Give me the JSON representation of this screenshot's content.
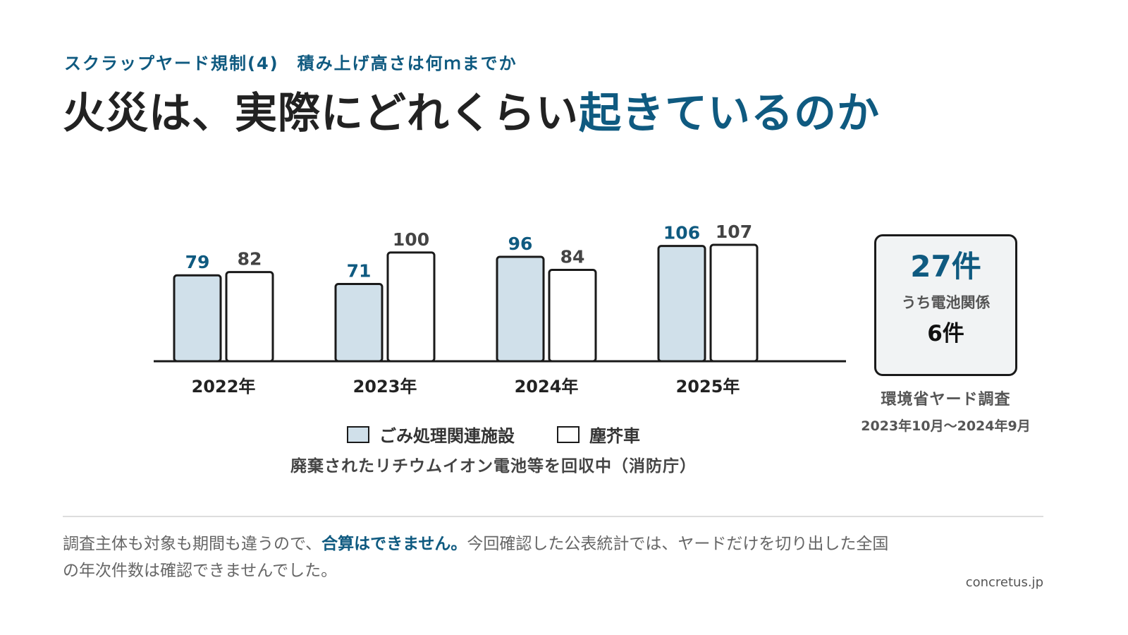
{
  "header": {
    "subtitle": "スクラップヤード規制(4)　積み上げ高さは何ｍまでか",
    "title_part1": "火災は、実際にどれくらい",
    "title_part2": "起きているのか"
  },
  "colors": {
    "accent": "#0f5a80",
    "series1_fill": "#d0e0ea",
    "series2_fill": "#ffffff",
    "stroke": "#1a1a1a"
  },
  "chart_data": {
    "type": "bar",
    "categories": [
      "2022年",
      "2023年",
      "2024年",
      "2025年"
    ],
    "series": [
      {
        "name": "ごみ処理関連施設",
        "values": [
          79,
          71,
          96,
          106
        ]
      },
      {
        "name": "塵芥車",
        "values": [
          82,
          100,
          84,
          107
        ]
      }
    ],
    "ylim": [
      0,
      120
    ],
    "grid": false,
    "legend": "bottom",
    "note": "廃棄されたリチウムイオン電池等を回収中（消防庁）"
  },
  "stat": {
    "main": "27件",
    "sub_label": "うち電池関係",
    "sub_count": "6件",
    "source": "環境省ヤード調査",
    "period": "2023年10月～2024年9月"
  },
  "footer": {
    "text1": "調査主体も対象も期間も違うので、",
    "emphasis": "合算はできません。",
    "text2": "今回確認した公表統計では、ヤードだけを切り出した全国の年次件数は確認できませんでした。"
  },
  "credit": "concretus.jp"
}
